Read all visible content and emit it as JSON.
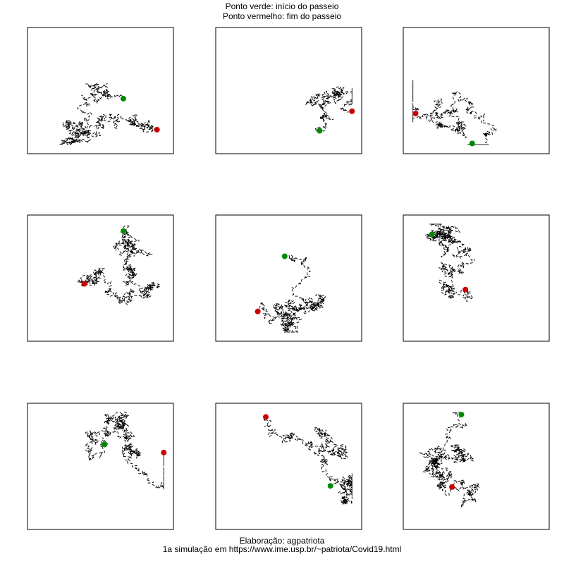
{
  "header": {
    "line1": "Ponto verde: início do passeio",
    "line2": "Ponto vermelho: fim do passeio"
  },
  "footer": {
    "line1": "Elaboração: agpatriota",
    "line2": "1a simulação em https://www.ime.usp.br/~patriota/Covid19.html"
  },
  "colors": {
    "start": "#008b00",
    "end": "#cc0000",
    "path": "#000000",
    "frame": "#000000"
  },
  "chart_data": [
    {
      "type": "line",
      "panel": 1,
      "seed": 11,
      "steps": 900,
      "start": [
        0.67,
        0.57
      ],
      "end": [
        0.92,
        0.84
      ]
    },
    {
      "type": "line",
      "panel": 2,
      "seed": 23,
      "steps": 450,
      "start": [
        0.73,
        0.85
      ],
      "end": [
        0.97,
        0.68
      ]
    },
    {
      "type": "line",
      "panel": 3,
      "seed": 37,
      "steps": 900,
      "start": [
        0.47,
        0.96
      ],
      "end": [
        0.05,
        0.7
      ]
    },
    {
      "type": "line",
      "panel": 4,
      "seed": 41,
      "steps": 900,
      "start": [
        0.67,
        0.09
      ],
      "end": [
        0.38,
        0.55
      ]
    },
    {
      "type": "line",
      "panel": 5,
      "seed": 53,
      "steps": 800,
      "start": [
        0.47,
        0.31
      ],
      "end": [
        0.27,
        0.79
      ]
    },
    {
      "type": "line",
      "panel": 6,
      "seed": 67,
      "steps": 900,
      "start": [
        0.17,
        0.12
      ],
      "end": [
        0.42,
        0.6
      ]
    },
    {
      "type": "line",
      "panel": 7,
      "seed": 71,
      "steps": 900,
      "start": [
        0.53,
        0.31
      ],
      "end": [
        0.97,
        0.38
      ]
    },
    {
      "type": "line",
      "panel": 8,
      "seed": 89,
      "steps": 900,
      "start": [
        0.81,
        0.67
      ],
      "end": [
        0.33,
        0.07
      ]
    },
    {
      "type": "line",
      "panel": 9,
      "seed": 97,
      "steps": 900,
      "start": [
        0.39,
        0.05
      ],
      "end": [
        0.32,
        0.68
      ]
    }
  ]
}
